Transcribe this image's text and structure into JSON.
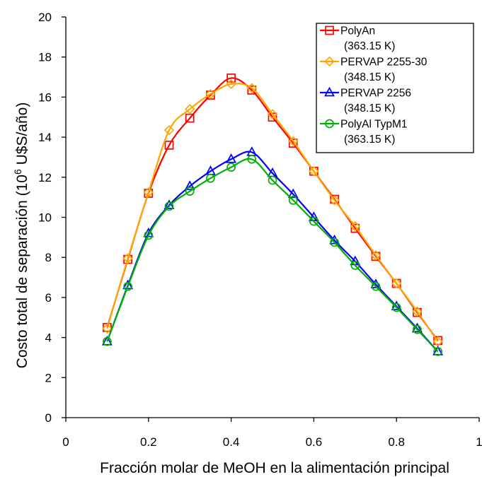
{
  "chart_data": {
    "type": "line",
    "title": "",
    "xlabel": "Fracción molar de MeOH en la alimentación principal",
    "ylabel_parts": [
      "Costo total de separación (10",
      "6",
      " U$S/año)"
    ],
    "xlim": [
      0,
      1
    ],
    "ylim": [
      0,
      20
    ],
    "xticks": [
      "0",
      "0.2",
      "0.4",
      "0.6",
      "0.8",
      "1"
    ],
    "yticks": [
      "0",
      "2",
      "4",
      "6",
      "8",
      "10",
      "12",
      "14",
      "16",
      "18",
      "20"
    ],
    "grid": false,
    "legend_position": "top-right",
    "x": [
      0.1,
      0.15,
      0.2,
      0.25,
      0.3,
      0.35,
      0.4,
      0.45,
      0.5,
      0.55,
      0.6,
      0.65,
      0.7,
      0.75,
      0.8,
      0.85,
      0.9
    ],
    "series": [
      {
        "name": "PolyAn",
        "name_line2": "(363.15 K)",
        "color": "#ff0000",
        "marker": "square",
        "values": [
          4.5,
          7.9,
          11.2,
          13.6,
          14.95,
          16.1,
          16.95,
          16.35,
          15.0,
          13.7,
          12.3,
          10.9,
          9.45,
          8.05,
          6.7,
          5.25,
          3.85
        ]
      },
      {
        "name": "PERVAP 2255-30",
        "name_line2": "(348.15 K)",
        "color": "#ffa500",
        "marker": "diamond",
        "values": [
          4.45,
          7.95,
          11.25,
          14.35,
          15.4,
          16.15,
          16.65,
          16.45,
          15.15,
          13.8,
          12.3,
          10.85,
          9.55,
          8.1,
          6.7,
          5.3,
          3.8
        ]
      },
      {
        "name": "PERVAP 2256",
        "name_line2": "(348.15 K)",
        "color": "#0000ff",
        "marker": "triangle",
        "values": [
          3.8,
          6.6,
          9.2,
          10.6,
          11.55,
          12.3,
          12.9,
          13.25,
          12.2,
          11.15,
          10.0,
          8.85,
          7.8,
          6.65,
          5.55,
          4.45,
          3.3
        ]
      },
      {
        "name": "PolyAl TypM1",
        "name_line2": "(363.15 K)",
        "color": "#00b000",
        "marker": "circle",
        "values": [
          3.8,
          6.55,
          9.1,
          10.55,
          11.3,
          11.95,
          12.5,
          12.9,
          11.85,
          10.85,
          9.8,
          8.75,
          7.6,
          6.55,
          5.5,
          4.4,
          3.3
        ]
      }
    ]
  }
}
